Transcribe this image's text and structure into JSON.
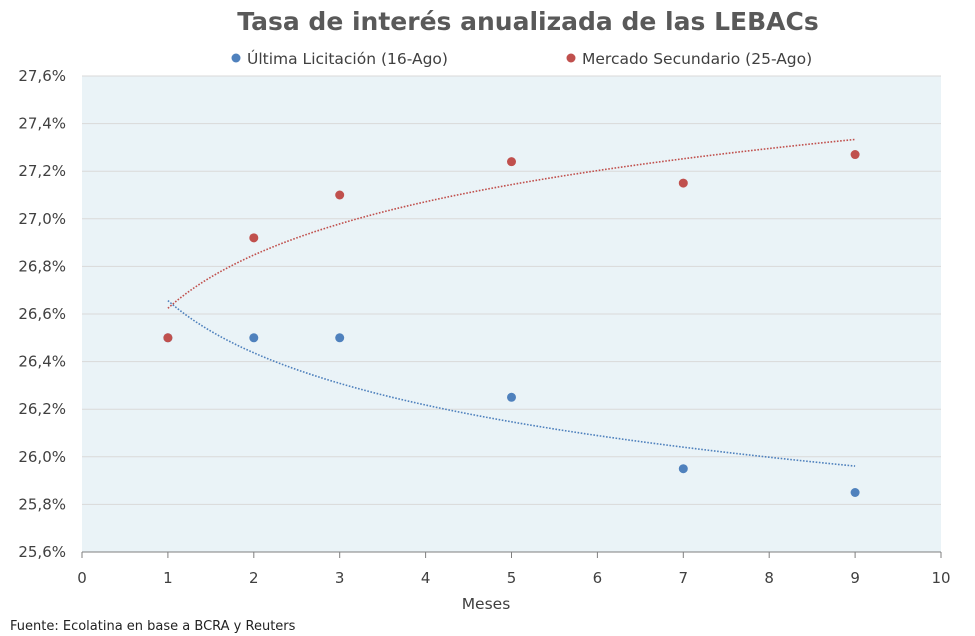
{
  "chart_data": {
    "type": "scatter",
    "title": "Tasa de interés anualizada de las LEBACs",
    "xlabel": "Meses",
    "ylabel": "",
    "xlim": [
      0,
      10
    ],
    "ylim": [
      25.6,
      27.6
    ],
    "x_ticks": [
      "0",
      "1",
      "2",
      "3",
      "4",
      "5",
      "6",
      "7",
      "8",
      "9",
      "10"
    ],
    "y_ticks": [
      "25,6%",
      "25,8%",
      "26,0%",
      "26,2%",
      "26,4%",
      "26,6%",
      "26,8%",
      "27,0%",
      "27,2%",
      "27,4%",
      "27,6%"
    ],
    "grid": true,
    "legend_position": "top",
    "plot_background": "#EAF3F7",
    "series": [
      {
        "name": "Última Licitación (16-Ago)",
        "color": "#4F81BD",
        "trendline": "logarithmic",
        "points": [
          {
            "x": 1,
            "y": 26.5
          },
          {
            "x": 2,
            "y": 26.5
          },
          {
            "x": 3,
            "y": 26.5
          },
          {
            "x": 5,
            "y": 26.25
          },
          {
            "x": 7,
            "y": 25.95
          },
          {
            "x": 9,
            "y": 25.85
          }
        ]
      },
      {
        "name": "Mercado Secundario (25-Ago)",
        "color": "#C0504D",
        "trendline": "logarithmic",
        "points": [
          {
            "x": 1,
            "y": 26.5
          },
          {
            "x": 2,
            "y": 26.92
          },
          {
            "x": 3,
            "y": 27.1
          },
          {
            "x": 5,
            "y": 27.24
          },
          {
            "x": 7,
            "y": 27.15
          },
          {
            "x": 9,
            "y": 27.27
          }
        ]
      }
    ],
    "source": "Fuente:  Ecolatina en base a BCRA y Reuters"
  }
}
